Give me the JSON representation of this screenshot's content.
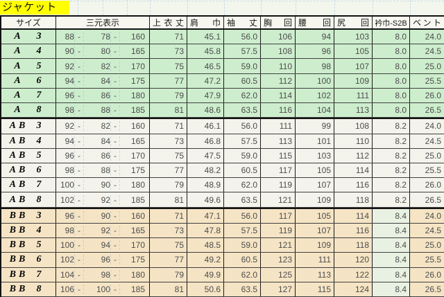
{
  "title": {
    "text": "ジャケット",
    "bg": "#ffff00"
  },
  "header": {
    "size_label": "サイズ",
    "three_measure_label": "三元表示",
    "measure_columns": [
      {
        "key": "jacket-length",
        "label": "上衣丈",
        "justify": true
      },
      {
        "key": "shoulder-width",
        "label": "肩巾",
        "justify": true
      },
      {
        "key": "sleeve-length",
        "label": "袖丈",
        "justify": true
      },
      {
        "key": "chest",
        "label": "胸回",
        "justify": true
      },
      {
        "key": "waist",
        "label": "腰回",
        "justify": true
      },
      {
        "key": "hip",
        "label": "尻回",
        "justify": true
      },
      {
        "key": "collar",
        "label": "衿巾-S2B",
        "justify": false
      },
      {
        "key": "vent",
        "label": "ベント",
        "justify": true
      }
    ]
  },
  "separator": "-",
  "colors": {
    "section_a_bg": "#ccefcc",
    "section_ab_bg": "#f4f4ec",
    "section_bb_bg": "#f5e4c4",
    "bb_collar_bg": "#e9f1e2",
    "title_bg": "#ffff00",
    "grid_border": "#181818"
  },
  "sections": [
    {
      "id": "a",
      "name": "A",
      "rows": [
        [
          "A",
          "3",
          "88",
          "78",
          "160",
          "71",
          "45.1",
          "56.0",
          "106",
          "94",
          "103",
          "8.0",
          "24.0"
        ],
        [
          "A",
          "4",
          "90",
          "80",
          "165",
          "73",
          "45.8",
          "57.5",
          "108",
          "96",
          "105",
          "8.0",
          "24.5"
        ],
        [
          "A",
          "5",
          "92",
          "82",
          "170",
          "75",
          "46.5",
          "59.0",
          "110",
          "98",
          "107",
          "8.0",
          "25.0"
        ],
        [
          "A",
          "6",
          "94",
          "84",
          "175",
          "77",
          "47.2",
          "60.5",
          "112",
          "100",
          "109",
          "8.0",
          "25.5"
        ],
        [
          "A",
          "7",
          "96",
          "86",
          "180",
          "79",
          "47.9",
          "62.0",
          "114",
          "102",
          "111",
          "8.0",
          "26.0"
        ],
        [
          "A",
          "8",
          "98",
          "88",
          "185",
          "81",
          "48.6",
          "63.5",
          "116",
          "104",
          "113",
          "8.0",
          "26.5"
        ]
      ]
    },
    {
      "id": "ab",
      "name": "AB",
      "rows": [
        [
          "AB",
          "3",
          "92",
          "82",
          "160",
          "71",
          "46.1",
          "56.0",
          "111",
          "99",
          "108",
          "8.2",
          "24.0"
        ],
        [
          "AB",
          "4",
          "94",
          "84",
          "165",
          "73",
          "46.8",
          "57.5",
          "113",
          "101",
          "110",
          "8.2",
          "24.5"
        ],
        [
          "AB",
          "5",
          "96",
          "86",
          "170",
          "75",
          "47.5",
          "59.0",
          "115",
          "103",
          "112",
          "8.2",
          "25.0"
        ],
        [
          "AB",
          "6",
          "98",
          "88",
          "175",
          "77",
          "48.2",
          "60.5",
          "117",
          "105",
          "114",
          "8.2",
          "25.5"
        ],
        [
          "AB",
          "7",
          "100",
          "90",
          "180",
          "79",
          "48.9",
          "62.0",
          "119",
          "107",
          "116",
          "8.2",
          "26.0"
        ],
        [
          "AB",
          "8",
          "102",
          "92",
          "185",
          "81",
          "49.6",
          "63.5",
          "121",
          "109",
          "118",
          "8.2",
          "26.5"
        ]
      ]
    },
    {
      "id": "bb",
      "name": "BB",
      "rows": [
        [
          "BB",
          "3",
          "96",
          "90",
          "160",
          "71",
          "47.1",
          "56.0",
          "117",
          "105",
          "114",
          "8.4",
          "24.0"
        ],
        [
          "BB",
          "4",
          "98",
          "92",
          "165",
          "73",
          "47.8",
          "57.5",
          "119",
          "107",
          "116",
          "8.4",
          "24.5"
        ],
        [
          "BB",
          "5",
          "100",
          "94",
          "170",
          "75",
          "48.5",
          "59.0",
          "121",
          "109",
          "118",
          "8.4",
          "25.0"
        ],
        [
          "BB",
          "6",
          "102",
          "96",
          "175",
          "77",
          "49.2",
          "60.5",
          "123",
          "111",
          "120",
          "8.4",
          "25.5"
        ],
        [
          "BB",
          "7",
          "104",
          "98",
          "180",
          "79",
          "49.9",
          "62.0",
          "125",
          "113",
          "122",
          "8.4",
          "26.0"
        ],
        [
          "BB",
          "8",
          "106",
          "100",
          "185",
          "81",
          "50.6",
          "63.5",
          "127",
          "115",
          "124",
          "8.4",
          "26.5"
        ]
      ]
    }
  ]
}
